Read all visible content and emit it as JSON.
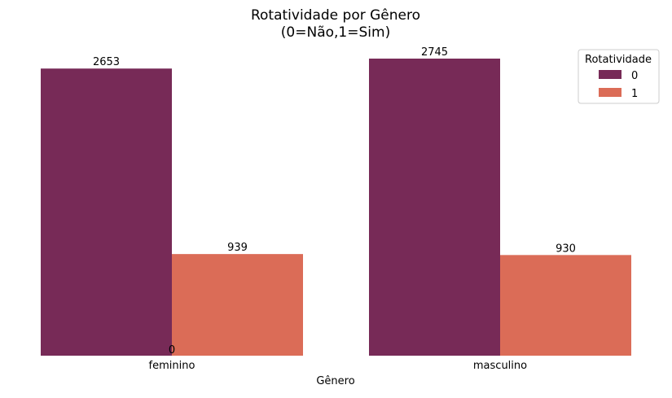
{
  "chart_data": {
    "type": "bar",
    "title": "Rotatividade por Gênero",
    "subtitle": "(0=Não,1=Sim)",
    "xlabel": "Gênero",
    "ylabel": "",
    "categories": [
      "feminino",
      "masculino"
    ],
    "series": [
      {
        "name": "0",
        "values": [
          2653,
          2745
        ],
        "color": "#772a57"
      },
      {
        "name": "1",
        "values": [
          939,
          930
        ],
        "color": "#db6c57"
      }
    ],
    "ylim": [
      0,
      2745
    ],
    "grid": false,
    "legend": {
      "title": "Rotatividade",
      "placement": "top-right"
    },
    "annotations": [
      {
        "text": "0",
        "near": "feminino"
      }
    ]
  }
}
